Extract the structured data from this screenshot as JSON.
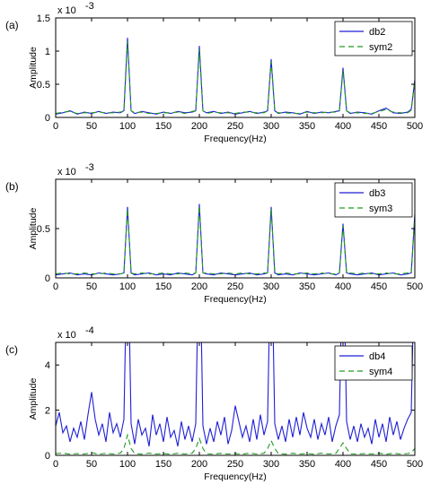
{
  "chart_data": [
    {
      "type": "line",
      "panel_label": "(a)",
      "xlabel": "Frequency(Hz)",
      "ylabel": "Amplitude",
      "exponent": "x 10",
      "exponent_power": "-3",
      "xlim": [
        0,
        500
      ],
      "ylim": [
        0,
        1.5
      ],
      "xticks": [
        "0",
        "50",
        "100",
        "150",
        "200",
        "250",
        "300",
        "350",
        "400",
        "450",
        "500"
      ],
      "yticks": [
        "0",
        "0.5",
        "1",
        "1.5"
      ],
      "legend_position": "top-right",
      "series": [
        {
          "name": "db2",
          "color": "#1f1fd6",
          "dash": "solid",
          "x": [
            0,
            10,
            20,
            30,
            40,
            50,
            60,
            70,
            80,
            90,
            95,
            100,
            105,
            110,
            120,
            130,
            140,
            150,
            160,
            170,
            180,
            190,
            195,
            200,
            205,
            210,
            220,
            230,
            240,
            250,
            260,
            270,
            280,
            290,
            295,
            300,
            305,
            310,
            320,
            330,
            340,
            350,
            360,
            370,
            380,
            390,
            395,
            400,
            405,
            410,
            420,
            430,
            440,
            450,
            460,
            470,
            480,
            490,
            495,
            500
          ],
          "y": [
            0.05,
            0.07,
            0.1,
            0.05,
            0.08,
            0.06,
            0.09,
            0.06,
            0.08,
            0.07,
            0.1,
            1.2,
            0.1,
            0.06,
            0.09,
            0.07,
            0.05,
            0.08,
            0.06,
            0.09,
            0.07,
            0.08,
            0.1,
            1.08,
            0.1,
            0.07,
            0.09,
            0.06,
            0.08,
            0.05,
            0.07,
            0.09,
            0.06,
            0.08,
            0.1,
            0.88,
            0.1,
            0.06,
            0.08,
            0.07,
            0.05,
            0.09,
            0.06,
            0.08,
            0.07,
            0.09,
            0.1,
            0.75,
            0.1,
            0.06,
            0.08,
            0.07,
            0.05,
            0.1,
            0.14,
            0.07,
            0.06,
            0.08,
            0.12,
            0.57
          ]
        },
        {
          "name": "sym2",
          "color": "#1f9a1f",
          "dash": "6,4",
          "x": [
            0,
            10,
            20,
            30,
            40,
            50,
            60,
            70,
            80,
            90,
            95,
            100,
            105,
            110,
            120,
            130,
            140,
            150,
            160,
            170,
            180,
            190,
            195,
            200,
            205,
            210,
            220,
            230,
            240,
            250,
            260,
            270,
            280,
            290,
            295,
            300,
            305,
            310,
            320,
            330,
            340,
            350,
            360,
            370,
            380,
            390,
            395,
            400,
            405,
            410,
            420,
            430,
            440,
            450,
            460,
            470,
            480,
            490,
            495,
            500
          ],
          "y": [
            0.06,
            0.08,
            0.09,
            0.06,
            0.07,
            0.07,
            0.08,
            0.07,
            0.07,
            0.08,
            0.1,
            1.15,
            0.1,
            0.07,
            0.08,
            0.06,
            0.06,
            0.07,
            0.07,
            0.08,
            0.06,
            0.09,
            0.1,
            1.03,
            0.1,
            0.06,
            0.08,
            0.07,
            0.07,
            0.06,
            0.08,
            0.08,
            0.07,
            0.07,
            0.1,
            0.84,
            0.1,
            0.07,
            0.07,
            0.06,
            0.06,
            0.08,
            0.07,
            0.07,
            0.08,
            0.08,
            0.1,
            0.71,
            0.1,
            0.07,
            0.07,
            0.06,
            0.06,
            0.09,
            0.12,
            0.08,
            0.07,
            0.07,
            0.11,
            0.55
          ]
        }
      ]
    },
    {
      "type": "line",
      "panel_label": "(b)",
      "xlabel": "Frequency(Hz)",
      "ylabel": "Amplitude",
      "exponent": "x 10",
      "exponent_power": "-3",
      "xlim": [
        0,
        500
      ],
      "ylim": [
        0,
        1.0
      ],
      "xticks": [
        "0",
        "50",
        "100",
        "150",
        "200",
        "250",
        "300",
        "350",
        "400",
        "450",
        "500"
      ],
      "yticks": [
        "0",
        "0.5"
      ],
      "legend_position": "top-right",
      "series": [
        {
          "name": "db3",
          "color": "#1f1fd6",
          "dash": "solid",
          "x": [
            0,
            10,
            20,
            30,
            40,
            50,
            60,
            70,
            80,
            90,
            95,
            100,
            105,
            110,
            120,
            130,
            140,
            150,
            160,
            170,
            180,
            190,
            195,
            200,
            205,
            210,
            220,
            230,
            240,
            250,
            260,
            270,
            280,
            290,
            295,
            300,
            305,
            310,
            320,
            330,
            340,
            350,
            360,
            370,
            380,
            390,
            395,
            400,
            405,
            410,
            420,
            430,
            440,
            450,
            460,
            470,
            480,
            490,
            495,
            500
          ],
          "y": [
            0.03,
            0.04,
            0.05,
            0.03,
            0.04,
            0.03,
            0.05,
            0.04,
            0.03,
            0.04,
            0.05,
            0.72,
            0.05,
            0.03,
            0.04,
            0.05,
            0.03,
            0.04,
            0.03,
            0.05,
            0.04,
            0.03,
            0.05,
            0.75,
            0.05,
            0.04,
            0.03,
            0.05,
            0.04,
            0.03,
            0.04,
            0.05,
            0.03,
            0.04,
            0.05,
            0.72,
            0.05,
            0.03,
            0.04,
            0.03,
            0.05,
            0.04,
            0.03,
            0.04,
            0.05,
            0.03,
            0.05,
            0.55,
            0.05,
            0.04,
            0.03,
            0.04,
            0.05,
            0.03,
            0.04,
            0.05,
            0.03,
            0.04,
            0.05,
            0.65
          ]
        },
        {
          "name": "sym3",
          "color": "#1f9a1f",
          "dash": "6,4",
          "x": [
            0,
            10,
            20,
            30,
            40,
            50,
            60,
            70,
            80,
            90,
            95,
            100,
            105,
            110,
            120,
            130,
            140,
            150,
            160,
            170,
            180,
            190,
            195,
            200,
            205,
            210,
            220,
            230,
            240,
            250,
            260,
            270,
            280,
            290,
            295,
            300,
            305,
            310,
            320,
            330,
            340,
            350,
            360,
            370,
            380,
            390,
            395,
            400,
            405,
            410,
            420,
            430,
            440,
            450,
            460,
            470,
            480,
            490,
            495,
            500
          ],
          "y": [
            0.04,
            0.05,
            0.04,
            0.04,
            0.05,
            0.04,
            0.04,
            0.05,
            0.04,
            0.04,
            0.05,
            0.7,
            0.05,
            0.04,
            0.05,
            0.04,
            0.04,
            0.05,
            0.04,
            0.04,
            0.05,
            0.04,
            0.05,
            0.73,
            0.05,
            0.05,
            0.04,
            0.04,
            0.05,
            0.04,
            0.05,
            0.04,
            0.04,
            0.05,
            0.05,
            0.7,
            0.05,
            0.04,
            0.05,
            0.04,
            0.04,
            0.05,
            0.04,
            0.05,
            0.04,
            0.04,
            0.05,
            0.53,
            0.05,
            0.05,
            0.04,
            0.05,
            0.04,
            0.04,
            0.05,
            0.04,
            0.04,
            0.05,
            0.05,
            0.63
          ]
        }
      ]
    },
    {
      "type": "line",
      "panel_label": "(c)",
      "xlabel": "Frequency(Hz)",
      "ylabel": "Amplitude",
      "exponent": "x 10",
      "exponent_power": "-4",
      "xlim": [
        0,
        500
      ],
      "ylim": [
        0,
        5
      ],
      "xticks": [
        "0",
        "50",
        "100",
        "150",
        "200",
        "250",
        "300",
        "350",
        "400",
        "450",
        "500"
      ],
      "yticks": [
        "0",
        "2",
        "4"
      ],
      "legend_position": "top-right",
      "series": [
        {
          "name": "db4",
          "color": "#1f1fd6",
          "dash": "solid",
          "x": [
            0,
            5,
            10,
            15,
            20,
            25,
            30,
            35,
            40,
            45,
            50,
            55,
            60,
            65,
            70,
            75,
            80,
            85,
            90,
            95,
            97,
            100,
            103,
            105,
            110,
            115,
            120,
            125,
            130,
            135,
            140,
            145,
            150,
            155,
            160,
            165,
            170,
            175,
            180,
            185,
            190,
            195,
            197,
            200,
            203,
            205,
            210,
            215,
            220,
            225,
            230,
            235,
            240,
            245,
            250,
            255,
            260,
            265,
            270,
            275,
            280,
            285,
            290,
            295,
            297,
            300,
            303,
            305,
            310,
            315,
            320,
            325,
            330,
            335,
            340,
            345,
            350,
            355,
            360,
            365,
            370,
            375,
            380,
            385,
            390,
            395,
            397,
            400,
            403,
            405,
            410,
            415,
            420,
            425,
            430,
            435,
            440,
            445,
            450,
            455,
            460,
            465,
            470,
            475,
            480,
            485,
            490,
            495,
            497,
            500
          ],
          "y": [
            1.3,
            1.9,
            1.0,
            1.3,
            0.6,
            1.2,
            0.8,
            1.5,
            0.7,
            1.8,
            2.8,
            1.6,
            0.9,
            1.4,
            0.6,
            1.9,
            1.0,
            1.4,
            0.8,
            1.6,
            5.0,
            5.0,
            5.0,
            1.4,
            0.5,
            1.6,
            0.9,
            1.2,
            0.4,
            1.8,
            0.9,
            1.4,
            0.6,
            1.7,
            0.8,
            1.1,
            0.4,
            1.5,
            0.7,
            1.3,
            0.6,
            1.4,
            5.0,
            5.0,
            5.0,
            1.3,
            0.5,
            1.2,
            0.6,
            1.5,
            0.9,
            1.7,
            0.5,
            1.1,
            2.2,
            1.5,
            0.8,
            1.3,
            0.6,
            1.6,
            0.7,
            1.8,
            0.9,
            1.5,
            5.0,
            5.0,
            5.0,
            1.4,
            0.7,
            1.3,
            0.6,
            1.6,
            0.8,
            1.7,
            0.9,
            1.9,
            1.2,
            0.8,
            1.6,
            0.7,
            1.4,
            0.9,
            1.7,
            0.6,
            1.3,
            1.8,
            5.0,
            5.0,
            5.0,
            1.5,
            0.7,
            1.3,
            0.6,
            1.4,
            0.8,
            1.2,
            0.5,
            1.6,
            0.8,
            1.4,
            0.6,
            1.7,
            0.9,
            1.5,
            0.7,
            1.2,
            1.6,
            1.9,
            5.0,
            5.0
          ]
        },
        {
          "name": "sym4",
          "color": "#1f9a1f",
          "dash": "6,4",
          "x": [
            0,
            10,
            20,
            30,
            40,
            50,
            60,
            70,
            80,
            90,
            95,
            100,
            105,
            110,
            120,
            130,
            140,
            150,
            160,
            170,
            180,
            190,
            195,
            200,
            205,
            210,
            220,
            230,
            240,
            250,
            260,
            270,
            280,
            290,
            295,
            300,
            305,
            310,
            320,
            330,
            340,
            350,
            360,
            370,
            380,
            390,
            395,
            400,
            405,
            410,
            420,
            430,
            440,
            450,
            460,
            470,
            480,
            490,
            495,
            500
          ],
          "y": [
            0.08,
            0.1,
            0.05,
            0.08,
            0.06,
            0.12,
            0.05,
            0.09,
            0.06,
            0.1,
            0.3,
            0.9,
            0.3,
            0.08,
            0.05,
            0.1,
            0.06,
            0.08,
            0.05,
            0.09,
            0.06,
            0.1,
            0.3,
            0.75,
            0.3,
            0.07,
            0.05,
            0.09,
            0.06,
            0.08,
            0.05,
            0.1,
            0.06,
            0.09,
            0.3,
            0.65,
            0.3,
            0.08,
            0.05,
            0.09,
            0.06,
            0.08,
            0.05,
            0.1,
            0.06,
            0.09,
            0.3,
            0.55,
            0.3,
            0.07,
            0.05,
            0.08,
            0.06,
            0.1,
            0.05,
            0.09,
            0.06,
            0.08,
            0.12,
            0.3
          ]
        }
      ]
    }
  ]
}
